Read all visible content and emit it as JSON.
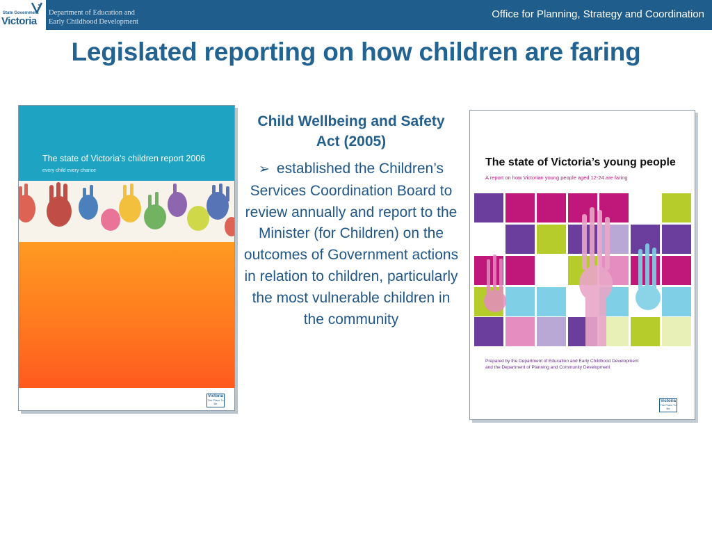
{
  "header": {
    "logo_small": "State Government",
    "logo_big": "Victoria",
    "dept_line1": "Department of Education and",
    "dept_line2": "Early Childhood Development",
    "office": "Office for Planning, Strategy and Coordination"
  },
  "slide": {
    "title": "Legislated reporting on how children are faring",
    "act_title": "Child Wellbeing and Safety Act (2005)",
    "bullet_symbol": "➢",
    "bullet_text": "established the Children’s Services Coordination Board to review annually and report to the Minister (for Children) on the outcomes of Government actions in relation to children, particularly the most vulnerable children in the community"
  },
  "cover_left": {
    "title": "The state of Victoria's children report 2006",
    "subtitle": "every child every chance",
    "logo": "Victoria",
    "tagline": "The Place To Be"
  },
  "cover_right": {
    "title": "The state of Victoria’s young people",
    "subtitle": "A report on how Victorian young people aged 12-24 are faring",
    "prepared_line1": "Prepared by the Department of Education and Early Childhood Development",
    "prepared_line2": "and the Department of Planning and Community Development",
    "logo": "Victoria",
    "tagline": "The Place To Be"
  },
  "colors": {
    "header_bg": "#1f5e8c",
    "title": "#236391",
    "body_text": "#1f5687",
    "cover_left_teal": "#1ea3c3",
    "cover_left_orange": "#ff7a1e",
    "grid_purple": "#6b3e9e",
    "grid_magenta": "#c0187a",
    "grid_lime": "#b5cc2a",
    "grid_cyan": "#7fd0e6",
    "grid_pink": "#e58cc1",
    "grid_lavender": "#b9a7d6"
  }
}
